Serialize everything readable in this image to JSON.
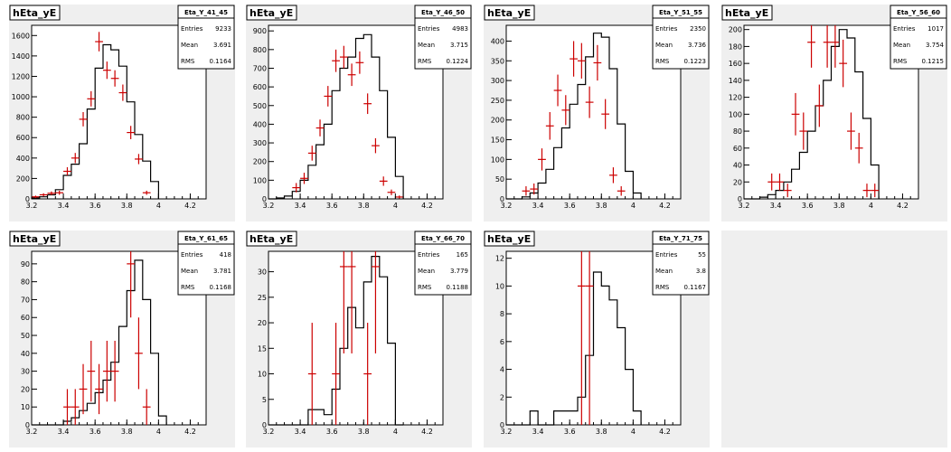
{
  "chart_data": [
    {
      "type": "histogram",
      "title": "hEta_yE",
      "stats": {
        "name": "Eta_Y_41_45",
        "entries_label": "Entries",
        "entries": "9233",
        "mean_label": "Mean",
        "mean": "3.691",
        "rms_label": "RMS",
        "rms": "0.1164"
      },
      "xlim": [
        3.2,
        4.3
      ],
      "ylim": [
        0,
        1700
      ],
      "x_ticks": [
        "3.2",
        "3.4",
        "3.6",
        "3.8",
        "4",
        "4.2"
      ],
      "y_ticks": [
        "0",
        "200",
        "400",
        "600",
        "800",
        "1000",
        "1200",
        "1400",
        "1600"
      ],
      "hist_edges": [
        3.2,
        3.25,
        3.3,
        3.35,
        3.4,
        3.45,
        3.5,
        3.55,
        3.6,
        3.65,
        3.7,
        3.75,
        3.8,
        3.85,
        3.9,
        3.95,
        4.0
      ],
      "hist_values": [
        10,
        20,
        40,
        90,
        230,
        340,
        540,
        880,
        1280,
        1510,
        1460,
        1300,
        950,
        630,
        370,
        170,
        0
      ],
      "points": [
        {
          "x": 3.225,
          "y": 20,
          "ey": 12
        },
        {
          "x": 3.275,
          "y": 40,
          "ey": 15
        },
        {
          "x": 3.325,
          "y": 55,
          "ey": 18
        },
        {
          "x": 3.375,
          "y": 60,
          "ey": 20
        },
        {
          "x": 3.425,
          "y": 270,
          "ey": 40
        },
        {
          "x": 3.475,
          "y": 400,
          "ey": 50
        },
        {
          "x": 3.525,
          "y": 780,
          "ey": 70
        },
        {
          "x": 3.575,
          "y": 980,
          "ey": 75
        },
        {
          "x": 3.625,
          "y": 1540,
          "ey": 95
        },
        {
          "x": 3.675,
          "y": 1260,
          "ey": 85
        },
        {
          "x": 3.725,
          "y": 1180,
          "ey": 80
        },
        {
          "x": 3.775,
          "y": 1040,
          "ey": 80
        },
        {
          "x": 3.825,
          "y": 650,
          "ey": 65
        },
        {
          "x": 3.875,
          "y": 390,
          "ey": 50
        },
        {
          "x": 3.925,
          "y": 60,
          "ey": 20
        }
      ]
    },
    {
      "type": "histogram",
      "title": "hEta_yE",
      "stats": {
        "name": "Eta_Y_46_50",
        "entries_label": "Entries",
        "entries": "4983",
        "mean_label": "Mean",
        "mean": "3.715",
        "rms_label": "RMS",
        "rms": "0.1224"
      },
      "xlim": [
        3.2,
        4.3
      ],
      "ylim": [
        0,
        930
      ],
      "x_ticks": [
        "3.2",
        "3.4",
        "3.6",
        "3.8",
        "4",
        "4.2"
      ],
      "y_ticks": [
        "0",
        "100",
        "200",
        "300",
        "400",
        "500",
        "600",
        "700",
        "800",
        "900"
      ],
      "hist_edges": [
        3.2,
        3.25,
        3.3,
        3.35,
        3.4,
        3.45,
        3.5,
        3.55,
        3.6,
        3.65,
        3.7,
        3.75,
        3.8,
        3.85,
        3.9,
        3.95,
        4.0,
        4.05
      ],
      "hist_values": [
        0,
        5,
        15,
        40,
        100,
        180,
        290,
        400,
        580,
        700,
        760,
        860,
        880,
        760,
        580,
        330,
        120,
        0
      ],
      "points": [
        {
          "x": 3.375,
          "y": 60,
          "ey": 25
        },
        {
          "x": 3.425,
          "y": 110,
          "ey": 30
        },
        {
          "x": 3.475,
          "y": 245,
          "ey": 40
        },
        {
          "x": 3.525,
          "y": 380,
          "ey": 45
        },
        {
          "x": 3.575,
          "y": 550,
          "ey": 55
        },
        {
          "x": 3.625,
          "y": 740,
          "ey": 60
        },
        {
          "x": 3.675,
          "y": 760,
          "ey": 60
        },
        {
          "x": 3.725,
          "y": 665,
          "ey": 60
        },
        {
          "x": 3.775,
          "y": 730,
          "ey": 60
        },
        {
          "x": 3.825,
          "y": 510,
          "ey": 55
        },
        {
          "x": 3.875,
          "y": 285,
          "ey": 40
        },
        {
          "x": 3.925,
          "y": 95,
          "ey": 25
        },
        {
          "x": 3.975,
          "y": 35,
          "ey": 15
        },
        {
          "x": 4.025,
          "y": 10,
          "ey": 8
        }
      ]
    },
    {
      "type": "histogram",
      "title": "hEta_yE",
      "stats": {
        "name": "Eta_Y_51_55",
        "entries_label": "Entries",
        "entries": "2350",
        "mean_label": "Mean",
        "mean": "3.736",
        "rms_label": "RMS",
        "rms": "0.1223"
      },
      "xlim": [
        3.2,
        4.3
      ],
      "ylim": [
        0,
        440
      ],
      "x_ticks": [
        "3.2",
        "3.4",
        "3.6",
        "3.8",
        "4",
        "4.2"
      ],
      "y_ticks": [
        "0",
        "50",
        "100",
        "150",
        "200",
        "250",
        "300",
        "350",
        "400"
      ],
      "hist_edges": [
        3.2,
        3.25,
        3.3,
        3.35,
        3.4,
        3.45,
        3.5,
        3.55,
        3.6,
        3.65,
        3.7,
        3.75,
        3.8,
        3.85,
        3.9,
        3.95,
        4.0,
        4.05
      ],
      "hist_values": [
        0,
        0,
        5,
        15,
        40,
        75,
        130,
        180,
        240,
        290,
        360,
        420,
        410,
        330,
        190,
        70,
        15,
        0
      ],
      "points": [
        {
          "x": 3.325,
          "y": 20,
          "ey": 12
        },
        {
          "x": 3.375,
          "y": 25,
          "ey": 14
        },
        {
          "x": 3.425,
          "y": 100,
          "ey": 28
        },
        {
          "x": 3.475,
          "y": 185,
          "ey": 35
        },
        {
          "x": 3.525,
          "y": 275,
          "ey": 40
        },
        {
          "x": 3.575,
          "y": 225,
          "ey": 38
        },
        {
          "x": 3.625,
          "y": 355,
          "ey": 45
        },
        {
          "x": 3.675,
          "y": 350,
          "ey": 45
        },
        {
          "x": 3.725,
          "y": 245,
          "ey": 40
        },
        {
          "x": 3.775,
          "y": 345,
          "ey": 45
        },
        {
          "x": 3.825,
          "y": 215,
          "ey": 38
        },
        {
          "x": 3.875,
          "y": 60,
          "ey": 20
        },
        {
          "x": 3.925,
          "y": 20,
          "ey": 12
        }
      ]
    },
    {
      "type": "histogram",
      "title": "hEta_yE",
      "stats": {
        "name": "Eta_Y_56_60",
        "entries_label": "Entries",
        "entries": "1017",
        "mean_label": "Mean",
        "mean": "3.754",
        "rms_label": "RMS",
        "rms": "0.1215"
      },
      "xlim": [
        3.2,
        4.3
      ],
      "ylim": [
        0,
        205
      ],
      "x_ticks": [
        "3.2",
        "3.4",
        "3.6",
        "3.8",
        "4",
        "4.2"
      ],
      "y_ticks": [
        "0",
        "20",
        "40",
        "60",
        "80",
        "100",
        "120",
        "140",
        "160",
        "180",
        "200"
      ],
      "hist_edges": [
        3.2,
        3.25,
        3.3,
        3.35,
        3.4,
        3.45,
        3.5,
        3.55,
        3.6,
        3.65,
        3.7,
        3.75,
        3.8,
        3.85,
        3.9,
        3.95,
        4.0,
        4.05
      ],
      "hist_values": [
        0,
        0,
        2,
        5,
        10,
        20,
        35,
        55,
        80,
        110,
        140,
        180,
        200,
        190,
        150,
        95,
        40,
        0
      ],
      "points": [
        {
          "x": 3.375,
          "y": 20,
          "ey": 10
        },
        {
          "x": 3.425,
          "y": 20,
          "ey": 10
        },
        {
          "x": 3.475,
          "y": 10,
          "ey": 8
        },
        {
          "x": 3.525,
          "y": 100,
          "ey": 25
        },
        {
          "x": 3.575,
          "y": 80,
          "ey": 22
        },
        {
          "x": 3.625,
          "y": 185,
          "ey": 30
        },
        {
          "x": 3.675,
          "y": 110,
          "ey": 25
        },
        {
          "x": 3.725,
          "y": 185,
          "ey": 30
        },
        {
          "x": 3.775,
          "y": 185,
          "ey": 30
        },
        {
          "x": 3.825,
          "y": 160,
          "ey": 28
        },
        {
          "x": 3.875,
          "y": 80,
          "ey": 22
        },
        {
          "x": 3.925,
          "y": 60,
          "ey": 18
        },
        {
          "x": 3.975,
          "y": 10,
          "ey": 8
        },
        {
          "x": 4.025,
          "y": 10,
          "ey": 8
        }
      ]
    },
    {
      "type": "histogram",
      "title": "hEta_yE",
      "stats": {
        "name": "Eta_Y_61_65",
        "entries_label": "Entries",
        "entries": "418",
        "mean_label": "Mean",
        "mean": "3.781",
        "rms_label": "RMS",
        "rms": "0.1168"
      },
      "xlim": [
        3.2,
        4.3
      ],
      "ylim": [
        0,
        97
      ],
      "x_ticks": [
        "3.2",
        "3.4",
        "3.6",
        "3.8",
        "4",
        "4.2"
      ],
      "y_ticks": [
        "0",
        "10",
        "20",
        "30",
        "40",
        "50",
        "60",
        "70",
        "80",
        "90"
      ],
      "hist_edges": [
        3.2,
        3.25,
        3.3,
        3.35,
        3.4,
        3.45,
        3.5,
        3.55,
        3.6,
        3.65,
        3.7,
        3.75,
        3.8,
        3.85,
        3.9,
        3.95,
        4.0,
        4.05
      ],
      "hist_values": [
        0,
        0,
        0,
        0,
        2,
        4,
        8,
        12,
        18,
        25,
        35,
        55,
        75,
        92,
        70,
        40,
        5,
        0
      ],
      "points": [
        {
          "x": 3.425,
          "y": 10,
          "ey": 10
        },
        {
          "x": 3.475,
          "y": 10,
          "ey": 10
        },
        {
          "x": 3.525,
          "y": 20,
          "ey": 14
        },
        {
          "x": 3.575,
          "y": 30,
          "ey": 17
        },
        {
          "x": 3.625,
          "y": 20,
          "ey": 14
        },
        {
          "x": 3.675,
          "y": 30,
          "ey": 17
        },
        {
          "x": 3.725,
          "y": 30,
          "ey": 17
        },
        {
          "x": 3.825,
          "y": 90,
          "ey": 30
        },
        {
          "x": 3.875,
          "y": 40,
          "ey": 20
        },
        {
          "x": 3.925,
          "y": 10,
          "ey": 10
        }
      ]
    },
    {
      "type": "histogram",
      "title": "hEta_yE",
      "stats": {
        "name": "Eta_Y_66_70",
        "entries_label": "Entries",
        "entries": "165",
        "mean_label": "Mean",
        "mean": "3.779",
        "rms_label": "RMS",
        "rms": "0.1188"
      },
      "xlim": [
        3.2,
        4.3
      ],
      "ylim": [
        0,
        34
      ],
      "x_ticks": [
        "3.2",
        "3.4",
        "3.6",
        "3.8",
        "4",
        "4.2"
      ],
      "y_ticks": [
        "0",
        "5",
        "10",
        "15",
        "20",
        "25",
        "30"
      ],
      "hist_edges": [
        3.2,
        3.25,
        3.3,
        3.35,
        3.4,
        3.45,
        3.5,
        3.55,
        3.6,
        3.65,
        3.7,
        3.75,
        3.8,
        3.85,
        3.9,
        3.95,
        4.0,
        4.05
      ],
      "hist_values": [
        0,
        0,
        0,
        0,
        0,
        3,
        3,
        2,
        7,
        15,
        23,
        19,
        28,
        33,
        29,
        16,
        0,
        0
      ],
      "points": [
        {
          "x": 3.475,
          "y": 10,
          "ey": 10
        },
        {
          "x": 3.625,
          "y": 10,
          "ey": 10
        },
        {
          "x": 3.675,
          "y": 31,
          "ey": 17
        },
        {
          "x": 3.725,
          "y": 31,
          "ey": 17
        },
        {
          "x": 3.825,
          "y": 10,
          "ey": 10
        },
        {
          "x": 3.875,
          "y": 31,
          "ey": 17
        }
      ]
    },
    {
      "type": "histogram",
      "title": "hEta_yE",
      "stats": {
        "name": "Eta_Y_71_75",
        "entries_label": "Entries",
        "entries": "55",
        "mean_label": "Mean",
        "mean": "3.8",
        "rms_label": "RMS",
        "rms": "0.1167"
      },
      "xlim": [
        3.2,
        4.3
      ],
      "ylim": [
        0,
        12.5
      ],
      "x_ticks": [
        "3.2",
        "3.4",
        "3.6",
        "3.8",
        "4",
        "4.2"
      ],
      "y_ticks": [
        "0",
        "2",
        "4",
        "6",
        "8",
        "10",
        "12"
      ],
      "hist_edges": [
        3.2,
        3.25,
        3.3,
        3.35,
        3.4,
        3.45,
        3.5,
        3.55,
        3.6,
        3.65,
        3.7,
        3.75,
        3.8,
        3.85,
        3.9,
        3.95,
        4.0,
        4.05
      ],
      "hist_values": [
        0,
        0,
        0,
        1,
        0,
        0,
        1,
        1,
        1,
        2,
        5,
        11,
        10,
        9,
        7,
        4,
        1,
        0
      ],
      "points": [
        {
          "x": 3.675,
          "y": 10,
          "ey": 10
        },
        {
          "x": 3.725,
          "y": 10,
          "ey": 10
        }
      ]
    }
  ]
}
